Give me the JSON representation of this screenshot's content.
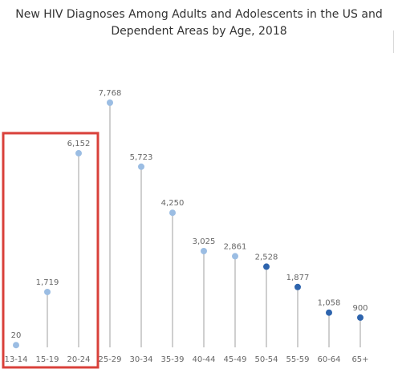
{
  "chart_data": {
    "type": "lollipop",
    "title_line1": "New HIV Diagnoses Among Adults and Adolescents in the US and",
    "title_line2": "Dependent Areas by Age, 2018",
    "categories": [
      "13-14",
      "15-19",
      "20-24",
      "25-29",
      "30-34",
      "35-39",
      "40-44",
      "45-49",
      "50-54",
      "55-59",
      "60-64",
      "65+"
    ],
    "values": [
      20,
      1719,
      6152,
      7768,
      5723,
      4250,
      3025,
      2861,
      2528,
      1877,
      1058,
      900
    ],
    "value_labels": [
      "20",
      "1,719",
      "6,152",
      "7,768",
      "5,723",
      "4,250",
      "3,025",
      "2,861",
      "2,528",
      "1,877",
      "1,058",
      "900"
    ],
    "ylim": [
      0,
      7768
    ],
    "grid": false,
    "colors": {
      "light_point": "#9bbde3",
      "dark_point": "#2e64ad",
      "stem": "#bfbfbf",
      "highlight_box": "#d9403a"
    },
    "dark_from_index": 8,
    "highlight_categories": [
      "13-14",
      "15-19",
      "20-24"
    ]
  }
}
